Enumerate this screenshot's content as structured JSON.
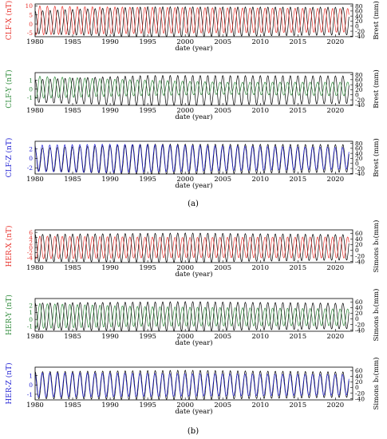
{
  "figure": {
    "panel_a_label": "(a)",
    "panel_b_label": "(b)"
  },
  "chart_data": [
    {
      "type": "line",
      "group": "a",
      "title": "",
      "xlabel": "date (year)",
      "ylabel_left": "CLF-X (nT)",
      "ylabel_right": "Brest (mm)",
      "xlim": [
        1980,
        2022.3
      ],
      "xticks": [
        1980,
        1985,
        1990,
        1995,
        2000,
        2005,
        2010,
        2015,
        2020
      ],
      "ylim_left": [
        -7,
        11
      ],
      "yticks_left": [
        -5,
        0,
        5,
        10
      ],
      "ylim_right": [
        -42,
        88
      ],
      "yticks_right": [
        -40,
        -20,
        0,
        20,
        40,
        60,
        80
      ],
      "series": [
        {
          "axis": "left",
          "color": "#e8322c",
          "period_years": 1,
          "phase": 0.62,
          "mean": [
            [
              1980,
              2.0
            ],
            [
              2022,
              2.0
            ]
          ],
          "amplitude": [
            [
              1980,
              8.0
            ],
            [
              1986,
              7.5
            ],
            [
              2000,
              7.0
            ],
            [
              2022,
              6.5
            ]
          ]
        },
        {
          "axis": "right",
          "color": "#000000",
          "period_years": 1,
          "phase": 0.25,
          "mean": [
            [
              1980,
              15.0
            ],
            [
              2022,
              20.0
            ]
          ],
          "amplitude": [
            [
              1980,
              45.0
            ],
            [
              1986,
              52.0
            ],
            [
              1995,
              60.0
            ],
            [
              2022,
              55.0
            ]
          ]
        }
      ]
    },
    {
      "type": "line",
      "group": "a",
      "title": "",
      "xlabel": "date (year)",
      "ylabel_left": "CLF-Y (nT)",
      "ylabel_right": "Brest (mm)",
      "xlim": [
        1980,
        2022.3
      ],
      "xticks": [
        1980,
        1985,
        1990,
        1995,
        2000,
        2005,
        2010,
        2015,
        2020
      ],
      "ylim_left": [
        -1.9,
        1.9
      ],
      "yticks_left": [
        -1,
        0,
        1
      ],
      "ylim_right": [
        -42,
        88
      ],
      "yticks_right": [
        -40,
        -20,
        0,
        20,
        40,
        60,
        80
      ],
      "series": [
        {
          "axis": "left",
          "color": "#2e8b3a",
          "period_years": 1,
          "phase": 0.62,
          "mean": [
            [
              1980,
              0.2
            ],
            [
              2022,
              0.0
            ]
          ],
          "amplitude": [
            [
              1980,
              1.3
            ],
            [
              1990,
              1.0
            ],
            [
              2005,
              0.7
            ],
            [
              2022,
              0.8
            ]
          ]
        },
        {
          "axis": "right",
          "color": "#000000",
          "period_years": 1,
          "phase": 0.25,
          "mean": [
            [
              1980,
              15.0
            ],
            [
              2022,
              20.0
            ]
          ],
          "amplitude": [
            [
              1980,
              45.0
            ],
            [
              1986,
              52.0
            ],
            [
              1995,
              60.0
            ],
            [
              2022,
              55.0
            ]
          ]
        }
      ]
    },
    {
      "type": "line",
      "group": "a",
      "title": "",
      "xlabel": "date (year)",
      "ylabel_left": "CLF-Z (nT)",
      "ylabel_right": "Brest (mm)",
      "xlim": [
        1980,
        2022.3
      ],
      "xticks": [
        1980,
        1985,
        1990,
        1995,
        2000,
        2005,
        2010,
        2015,
        2020
      ],
      "ylim_left": [
        -3.3,
        3.6
      ],
      "yticks_left": [
        -2,
        0,
        2
      ],
      "ylim_right": [
        -42,
        88
      ],
      "yticks_right": [
        -40,
        -20,
        0,
        20,
        40,
        60,
        80
      ],
      "series": [
        {
          "axis": "left",
          "color": "#2323d4",
          "period_years": 1,
          "phase": 0.3,
          "mean": [
            [
              1980,
              0.0
            ],
            [
              2022,
              0.0
            ]
          ],
          "amplitude": [
            [
              1980,
              2.8
            ],
            [
              1990,
              3.0
            ],
            [
              2005,
              2.6
            ],
            [
              2022,
              2.3
            ]
          ]
        },
        {
          "axis": "right",
          "color": "#000000",
          "period_years": 1,
          "phase": 0.25,
          "mean": [
            [
              1980,
              15.0
            ],
            [
              2022,
              20.0
            ]
          ],
          "amplitude": [
            [
              1980,
              45.0
            ],
            [
              1986,
              52.0
            ],
            [
              1995,
              60.0
            ],
            [
              2022,
              55.0
            ]
          ]
        }
      ]
    },
    {
      "type": "line",
      "group": "b",
      "title": "",
      "xlabel": "date (year)",
      "ylabel_left": "HER-X (nT)",
      "ylabel_right": "Simons b₁(mm)",
      "xlim": [
        1980,
        2022.3
      ],
      "xticks": [
        1980,
        1985,
        1990,
        1995,
        2000,
        2005,
        2010,
        2015,
        2020
      ],
      "ylim_left": [
        -6,
        7
      ],
      "yticks_left": [
        -4,
        -2,
        0,
        2,
        4,
        6
      ],
      "ylim_right": [
        -44,
        72
      ],
      "yticks_right": [
        -40,
        -20,
        0,
        20,
        40,
        60
      ],
      "series": [
        {
          "axis": "left",
          "color": "#e8322c",
          "period_years": 1,
          "phase": 0.62,
          "mean": [
            [
              1980,
              0.0
            ],
            [
              2022,
              0.0
            ]
          ],
          "amplitude": [
            [
              1980,
              4.5
            ],
            [
              2000,
              4.0
            ],
            [
              2022,
              4.2
            ]
          ]
        },
        {
          "axis": "right",
          "color": "#000000",
          "period_years": 1,
          "phase": 0.25,
          "mean": [
            [
              1980,
              8.0
            ],
            [
              2022,
              10.0
            ]
          ],
          "amplitude": [
            [
              1980,
              48.0
            ],
            [
              2000,
              52.0
            ],
            [
              2022,
              45.0
            ]
          ]
        }
      ]
    },
    {
      "type": "line",
      "group": "b",
      "title": "",
      "xlabel": "date (year)",
      "ylabel_left": "HER-Y (nT)",
      "ylabel_right": "Simons b₁(mm)",
      "xlim": [
        1980,
        2022.3
      ],
      "xticks": [
        1980,
        1985,
        1990,
        1995,
        2000,
        2005,
        2010,
        2015,
        2020
      ],
      "ylim_left": [
        -1.7,
        3.0
      ],
      "yticks_left": [
        -1,
        0,
        1,
        2
      ],
      "ylim_right": [
        -44,
        72
      ],
      "yticks_right": [
        -40,
        -20,
        0,
        20,
        40,
        60
      ],
      "series": [
        {
          "axis": "left",
          "color": "#2e8b3a",
          "period_years": 1,
          "phase": 0.62,
          "mean": [
            [
              1980,
              0.5
            ],
            [
              2022,
              0.3
            ]
          ],
          "amplitude": [
            [
              1980,
              1.8
            ],
            [
              1995,
              1.4
            ],
            [
              2022,
              1.2
            ]
          ]
        },
        {
          "axis": "right",
          "color": "#000000",
          "period_years": 1,
          "phase": 0.25,
          "mean": [
            [
              1980,
              8.0
            ],
            [
              2022,
              10.0
            ]
          ],
          "amplitude": [
            [
              1980,
              48.0
            ],
            [
              2000,
              52.0
            ],
            [
              2022,
              45.0
            ]
          ]
        }
      ]
    },
    {
      "type": "line",
      "group": "b",
      "title": "",
      "xlabel": "date (year)",
      "ylabel_left": "HER-Z (nT)",
      "ylabel_right": "Simons b₁(mm)",
      "xlim": [
        1980,
        2022.3
      ],
      "xticks": [
        1980,
        1985,
        1990,
        1995,
        2000,
        2005,
        2010,
        2015,
        2020
      ],
      "ylim_left": [
        -1.6,
        1.9
      ],
      "yticks_left": [
        -1,
        0,
        1
      ],
      "ylim_right": [
        -44,
        72
      ],
      "yticks_right": [
        -40,
        -20,
        0,
        20,
        40,
        60
      ],
      "series": [
        {
          "axis": "left",
          "color": "#2323d4",
          "period_years": 1,
          "phase": 0.3,
          "mean": [
            [
              1980,
              0.0
            ],
            [
              2022,
              0.0
            ]
          ],
          "amplitude": [
            [
              1980,
              1.3
            ],
            [
              2000,
              1.2
            ],
            [
              2022,
              1.1
            ]
          ]
        },
        {
          "axis": "right",
          "color": "#000000",
          "period_years": 1,
          "phase": 0.25,
          "mean": [
            [
              1980,
              8.0
            ],
            [
              2022,
              10.0
            ]
          ],
          "amplitude": [
            [
              1980,
              48.0
            ],
            [
              2000,
              52.0
            ],
            [
              2022,
              45.0
            ]
          ]
        }
      ]
    }
  ]
}
